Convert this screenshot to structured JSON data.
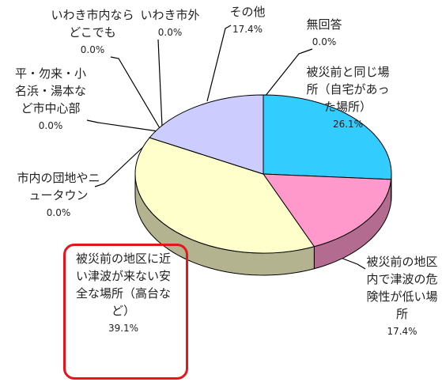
{
  "chart_data": {
    "type": "pie",
    "categories": [
      "被災前と同じ場所（自宅があった場所）",
      "被災前の地区内で津波の危険性が低い場所",
      "被災前の地区に近い津波が来ない安全な場所（高台など）",
      "市内の団地やニュータウン",
      "平・勿来・小名浜・湯本など市中心部",
      "いわき市内ならどこでも",
      "いわき市外",
      "その他",
      "無回答"
    ],
    "values": [
      26.1,
      17.4,
      39.1,
      0.0,
      0.0,
      0.0,
      0.0,
      17.4,
      0.0
    ],
    "value_labels": [
      "26.1%",
      "17.4%",
      "39.1%",
      "0.0%",
      "0.0%",
      "0.0%",
      "0.0%",
      "17.4%",
      "0.0%"
    ],
    "colors": [
      "#33ccff",
      "#ff99cc",
      "#ffffcc",
      "#99ccff",
      "#ccffcc",
      "#ffcc99",
      "#cc99ff",
      "#ccccff",
      "#ffff99"
    ]
  }
}
